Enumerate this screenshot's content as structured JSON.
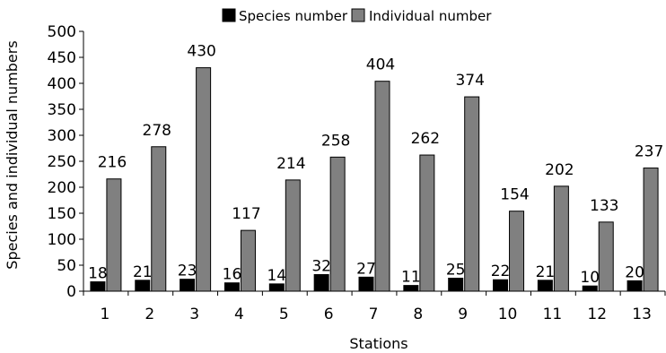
{
  "chart_data": {
    "type": "bar",
    "xlabel": "Stations",
    "ylabel": "Species and individual numbers",
    "ylim": [
      0,
      500
    ],
    "y_ticks": [
      0,
      50,
      100,
      150,
      200,
      250,
      300,
      350,
      400,
      450,
      500
    ],
    "grid": false,
    "legend_position": "top",
    "categories": [
      "1",
      "2",
      "3",
      "4",
      "5",
      "6",
      "7",
      "8",
      "9",
      "10",
      "11",
      "12",
      "13"
    ],
    "series": [
      {
        "name": "Species number",
        "color": "#000000",
        "values": [
          18,
          21,
          23,
          16,
          14,
          32,
          27,
          11,
          25,
          22,
          21,
          10,
          20
        ]
      },
      {
        "name": "Individual number",
        "color": "#808080",
        "values": [
          216,
          278,
          430,
          117,
          214,
          258,
          404,
          262,
          374,
          154,
          202,
          133,
          237
        ]
      }
    ]
  }
}
